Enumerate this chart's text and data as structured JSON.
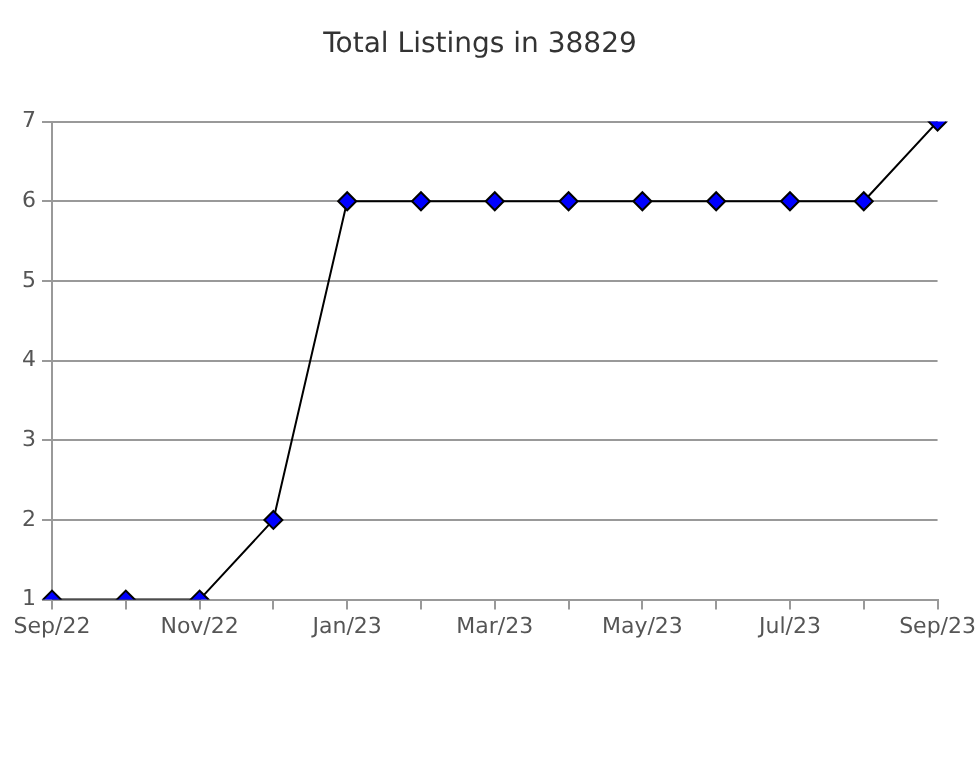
{
  "chart_data": {
    "type": "line",
    "title": "Total Listings in 38829",
    "categories": [
      "Sep/22",
      null,
      "Nov/22",
      null,
      "Jan/23",
      null,
      "Mar/23",
      null,
      "May/23",
      null,
      "Jul/23",
      null,
      "Sep/23"
    ],
    "series": [
      {
        "color": "#0000ff",
        "values": [
          1,
          1,
          1,
          2,
          6,
          6,
          6,
          6,
          6,
          6,
          6,
          6,
          7
        ]
      }
    ],
    "ylim": [
      1,
      7
    ],
    "yticks": [
      1,
      2,
      3,
      4,
      5,
      6,
      7
    ],
    "grid": "y",
    "legend": false,
    "marker": "diamond",
    "line_style": "solid"
  }
}
